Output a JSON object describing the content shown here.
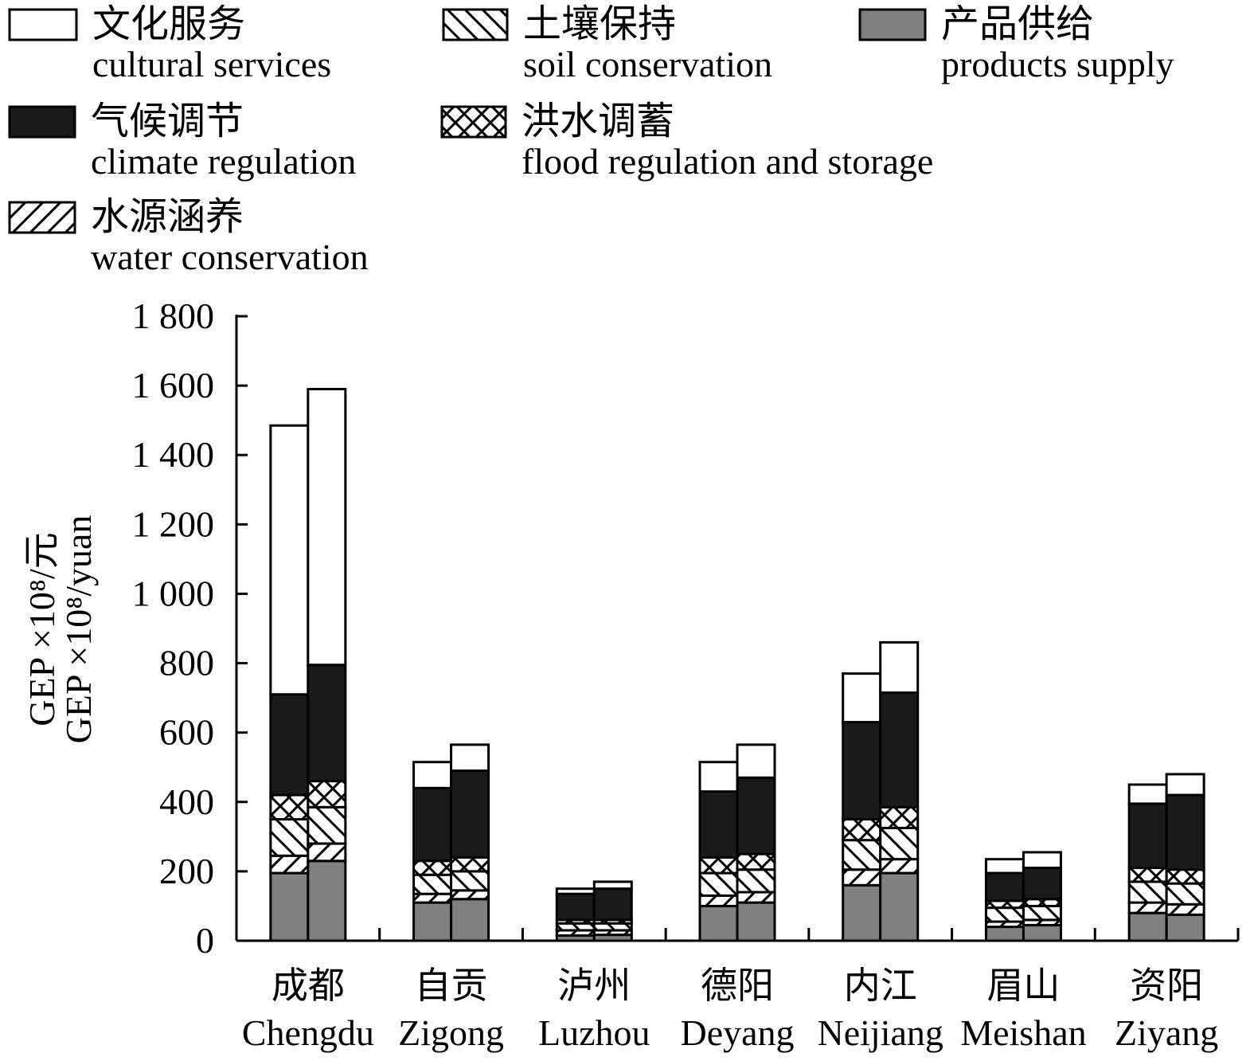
{
  "chart_data": {
    "type": "bar",
    "stacked": true,
    "grouped": true,
    "bars_per_category": 2,
    "ylabel_cn": "GEP ×10⁸/元",
    "ylabel_en": "GEP ×10⁸/yuan",
    "ylim": [
      0,
      1800
    ],
    "yticks": [
      0,
      200,
      400,
      600,
      800,
      1000,
      1200,
      1400,
      1600,
      1800
    ],
    "ytick_labels": [
      "0",
      "200",
      "400",
      "600",
      "800",
      "1 000",
      "1 200",
      "1 400",
      "1 600",
      "1 800"
    ],
    "categories": [
      {
        "cn": "成都",
        "en": "Chengdu"
      },
      {
        "cn": "自贡",
        "en": "Zigong"
      },
      {
        "cn": "泸州",
        "en": "Luzhou"
      },
      {
        "cn": "德阳",
        "en": "Deyang"
      },
      {
        "cn": "内江",
        "en": "Neijiang"
      },
      {
        "cn": "眉山",
        "en": "Meishan"
      },
      {
        "cn": "资阳",
        "en": "Ziyang"
      }
    ],
    "series": [
      {
        "key": "products",
        "cn": "产品供给",
        "en": "products supply",
        "color": "#808080",
        "pattern": "solid-gray",
        "values": [
          [
            195,
            230
          ],
          [
            110,
            120
          ],
          [
            15,
            17
          ],
          [
            100,
            110
          ],
          [
            160,
            195
          ],
          [
            40,
            45
          ],
          [
            80,
            75
          ]
        ]
      },
      {
        "key": "water",
        "cn": "水源涵养",
        "en": "water conservation",
        "color": "#000000",
        "pattern": "diag-right",
        "values": [
          [
            50,
            50
          ],
          [
            25,
            25
          ],
          [
            15,
            13
          ],
          [
            30,
            30
          ],
          [
            45,
            40
          ],
          [
            15,
            15
          ],
          [
            30,
            30
          ]
        ]
      },
      {
        "key": "soil",
        "cn": "土壤保持",
        "en": "soil conservation",
        "color": "#000000",
        "pattern": "diag-left",
        "values": [
          [
            105,
            105
          ],
          [
            55,
            55
          ],
          [
            20,
            20
          ],
          [
            65,
            65
          ],
          [
            85,
            90
          ],
          [
            40,
            40
          ],
          [
            60,
            60
          ]
        ]
      },
      {
        "key": "flood",
        "cn": "洪水调蓄",
        "en": "flood regulation and storage",
        "color": "#000000",
        "pattern": "crosshatch",
        "values": [
          [
            70,
            75
          ],
          [
            40,
            40
          ],
          [
            10,
            10
          ],
          [
            45,
            45
          ],
          [
            60,
            60
          ],
          [
            20,
            20
          ],
          [
            40,
            40
          ]
        ]
      },
      {
        "key": "climate",
        "cn": "气候调节",
        "en": "climate regulation",
        "color": "#1a1a1a",
        "pattern": "solid-black",
        "values": [
          [
            290,
            335
          ],
          [
            210,
            250
          ],
          [
            75,
            90
          ],
          [
            190,
            220
          ],
          [
            280,
            330
          ],
          [
            80,
            90
          ],
          [
            185,
            215
          ]
        ]
      },
      {
        "key": "cultural",
        "cn": "文化服务",
        "en": "cultural services",
        "color": "#ffffff",
        "pattern": "solid-white",
        "values": [
          [
            775,
            795
          ],
          [
            75,
            75
          ],
          [
            15,
            20
          ],
          [
            85,
            95
          ],
          [
            140,
            145
          ],
          [
            40,
            45
          ],
          [
            55,
            60
          ]
        ]
      }
    ]
  },
  "legend": {
    "items": [
      {
        "key": "cultural",
        "cn": "文化服务",
        "en": "cultural services"
      },
      {
        "key": "soil",
        "cn": "土壤保持",
        "en": "soil conservation"
      },
      {
        "key": "products",
        "cn": "产品供给",
        "en": "products supply"
      },
      {
        "key": "climate",
        "cn": "气候调节",
        "en": "climate regulation"
      },
      {
        "key": "flood",
        "cn": "洪水调蓄",
        "en": "flood regulation and storage"
      },
      {
        "key": "water",
        "cn": "水源涵养",
        "en": "water conservation"
      }
    ]
  }
}
